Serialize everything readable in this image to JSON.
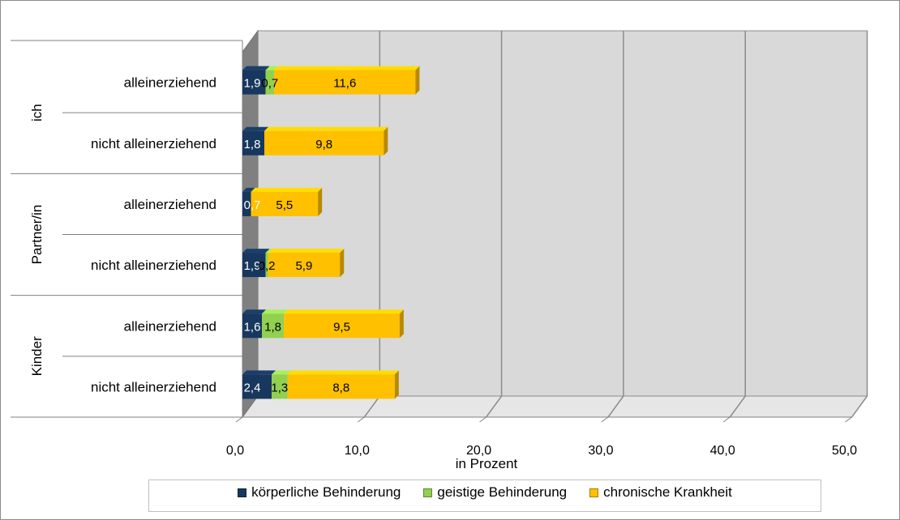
{
  "chart_data": {
    "type": "bar",
    "orientation": "horizontal",
    "stacked": true,
    "xlabel": "in Prozent",
    "xlim": [
      0,
      50
    ],
    "xticks": [
      "0,0",
      "10,0",
      "20,0",
      "30,0",
      "40,0",
      "50,0"
    ],
    "groups": [
      {
        "label": "Kinder",
        "categories": [
          "nicht alleinerziehend",
          "alleinerziehend"
        ]
      },
      {
        "label": "Partner/in",
        "categories": [
          "nicht alleinerziehend",
          "alleinerziehend"
        ]
      },
      {
        "label": "ich",
        "categories": [
          "nicht alleinerziehend",
          "alleinerziehend"
        ]
      }
    ],
    "series": [
      {
        "name": "körperliche Behinderung",
        "color": "#17375e",
        "values": [
          2.4,
          1.6,
          1.9,
          0.7,
          1.8,
          1.9
        ],
        "labels": [
          "2,4",
          "1,6",
          "1,9",
          "0,7",
          "1,8",
          "1,9"
        ]
      },
      {
        "name": "geistige Behinderung",
        "color": "#92d050",
        "values": [
          1.3,
          1.8,
          0.2,
          0,
          0,
          0.7
        ],
        "labels": [
          "1,3",
          "1,8",
          "0,2",
          "",
          "",
          "0,7"
        ]
      },
      {
        "name": "chronische Krankheit",
        "color": "#ffc000",
        "values": [
          8.8,
          9.5,
          5.9,
          5.5,
          9.8,
          11.6
        ],
        "labels": [
          "8,8",
          "9,5",
          "5,9",
          "5,5",
          "9,8",
          "11,6"
        ]
      }
    ],
    "grid": true,
    "legend_position": "bottom"
  }
}
